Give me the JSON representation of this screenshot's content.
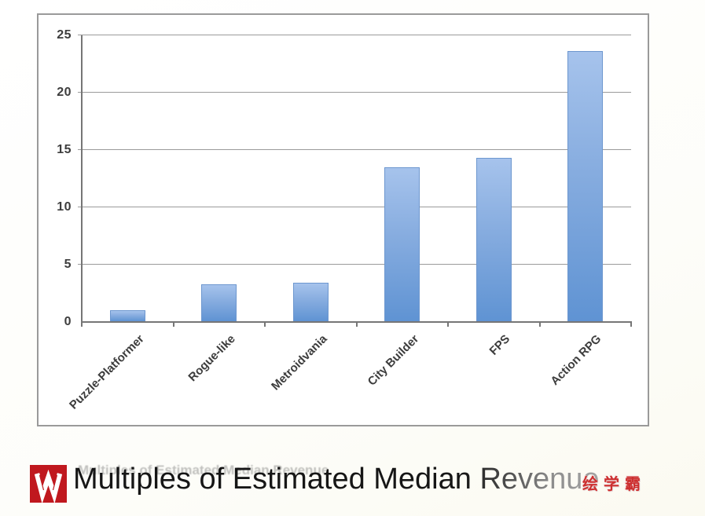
{
  "chart_data": {
    "type": "bar",
    "title": "Multiples of Estimated Median Revenue",
    "categories": [
      "Puzzle-Platformer",
      "Rogue-like",
      "Metroidvania",
      "City Builder",
      "FPS",
      "Action RPG"
    ],
    "values": [
      1.0,
      3.3,
      3.4,
      13.5,
      14.3,
      23.6
    ],
    "xlabel": "",
    "ylabel": "",
    "ylim": [
      0,
      25
    ],
    "ytick_step": 5,
    "ytick_labels": [
      "0",
      "5",
      "10",
      "15",
      "20",
      "25"
    ],
    "grid": true,
    "legend": false,
    "bar_color_top": "#a6c3ec",
    "bar_color_mid": "#86acdf",
    "bar_color_bottom": "#5f93d3",
    "bar_border_color": "#6d97cf",
    "gridline_color": "#9b9b9b",
    "axis_color": "#767676",
    "tick_label_color": "#3d3d3d",
    "chart_border_color": "#9a9a9a"
  },
  "caption": {
    "title_color": "#1b1b1b"
  },
  "logo": {
    "name": "huixueba-logo",
    "background_color": "#c0181e",
    "glyph_color": "#ffffff"
  },
  "watermark": {
    "text": "绘学霸",
    "color": "#cd2f2f"
  }
}
